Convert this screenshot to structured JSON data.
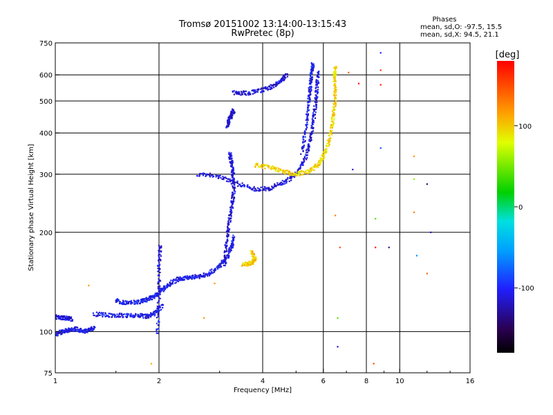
{
  "chart_data": {
    "type": "scatter",
    "title": "Tromsø 20151002 13:14:00-13:15:43",
    "subtitle": "RwPretec (8p)",
    "xlabel": "Frequency [MHz]",
    "ylabel": "Stationary phase Virtual Height [km]",
    "x_scale": "log",
    "y_scale": "log",
    "xlim": [
      1,
      16
    ],
    "ylim": [
      75,
      750
    ],
    "x_ticks": [
      1,
      2,
      4,
      6,
      8,
      10,
      16
    ],
    "x_tick_labels": [
      "1",
      "2",
      "4",
      "6",
      "8",
      "10",
      "16"
    ],
    "y_ticks": [
      75,
      100,
      200,
      300,
      400,
      500,
      600,
      750
    ],
    "y_tick_labels": [
      "75",
      "100",
      "200",
      "300",
      "400",
      "500",
      "600",
      "750"
    ],
    "grid": true,
    "info": {
      "heading": "Phases",
      "line1": "mean, sd,O: -97.5, 15.5",
      "line2": "mean, sd,X:  94.5, 21.1"
    },
    "colorbar": {
      "label": "[deg]",
      "range": [
        -180,
        180
      ],
      "ticks": [
        100,
        0,
        -100
      ],
      "tick_labels": [
        "100",
        "0",
        "-100"
      ]
    },
    "traces": [
      {
        "name": "O-mode low E/F1 lower",
        "phase": -110,
        "points": [
          [
            1.0,
            111
          ],
          [
            1.04,
            110
          ],
          [
            1.08,
            110
          ],
          [
            1.12,
            109
          ]
        ]
      },
      {
        "name": "O-mode low band",
        "phase": -105,
        "points": [
          [
            1.0,
            98
          ],
          [
            1.05,
            100
          ],
          [
            1.1,
            101
          ],
          [
            1.15,
            102
          ],
          [
            1.2,
            100
          ],
          [
            1.25,
            101
          ],
          [
            1.3,
            103
          ]
        ]
      },
      {
        "name": "F1 lower trace",
        "phase": -105,
        "points": [
          [
            1.3,
            113
          ],
          [
            1.45,
            112
          ],
          [
            1.6,
            112
          ],
          [
            1.75,
            112
          ],
          [
            1.85,
            111
          ],
          [
            1.95,
            114
          ],
          [
            2.05,
            120
          ]
        ]
      },
      {
        "name": "F1 upper trace",
        "phase": -105,
        "points": [
          [
            1.5,
            124
          ],
          [
            1.6,
            122
          ],
          [
            1.75,
            123
          ],
          [
            1.85,
            125
          ],
          [
            1.95,
            128
          ],
          [
            2.05,
            134
          ],
          [
            2.15,
            140
          ],
          [
            2.3,
            145
          ],
          [
            2.45,
            146
          ],
          [
            2.6,
            147
          ],
          [
            2.8,
            150
          ],
          [
            3.0,
            158
          ],
          [
            3.15,
            168
          ],
          [
            3.25,
            180
          ],
          [
            3.3,
            195
          ]
        ]
      },
      {
        "name": "F cusp near 2 MHz",
        "phase": -110,
        "points": [
          [
            1.98,
            100
          ],
          [
            2.0,
            130
          ],
          [
            2.0,
            160
          ],
          [
            2.02,
            185
          ]
        ]
      },
      {
        "name": "F1 cusp near 3.2 MHz",
        "phase": -115,
        "points": [
          [
            3.1,
            160
          ],
          [
            3.15,
            190
          ],
          [
            3.2,
            215
          ],
          [
            3.25,
            240
          ],
          [
            3.3,
            270
          ],
          [
            3.28,
            300
          ],
          [
            3.25,
            325
          ],
          [
            3.2,
            350
          ]
        ]
      },
      {
        "name": "F2 O-mode",
        "phase": -110,
        "points": [
          [
            2.6,
            300
          ],
          [
            3.0,
            295
          ],
          [
            3.4,
            280
          ],
          [
            3.8,
            270
          ],
          [
            4.2,
            272
          ],
          [
            4.6,
            283
          ],
          [
            5.0,
            300
          ],
          [
            5.3,
            330
          ],
          [
            5.5,
            380
          ],
          [
            5.6,
            430
          ],
          [
            5.7,
            490
          ],
          [
            5.75,
            550
          ],
          [
            5.8,
            620
          ]
        ]
      },
      {
        "name": "F2 O-mode second hop",
        "phase": -110,
        "points": [
          [
            3.3,
            530
          ],
          [
            3.6,
            528
          ],
          [
            4.0,
            540
          ],
          [
            4.3,
            555
          ],
          [
            4.55,
            580
          ],
          [
            4.7,
            600
          ]
        ]
      },
      {
        "name": "F2 O-mode spread",
        "phase": -105,
        "points": [
          [
            5.2,
            350
          ],
          [
            5.35,
            420
          ],
          [
            5.45,
            500
          ],
          [
            5.5,
            560
          ],
          [
            5.55,
            610
          ],
          [
            5.6,
            650
          ]
        ]
      },
      {
        "name": "F2 X-mode",
        "phase": 95,
        "points": [
          [
            3.8,
            320
          ],
          [
            4.2,
            315
          ],
          [
            4.6,
            305
          ],
          [
            5.0,
            300
          ],
          [
            5.4,
            305
          ],
          [
            5.8,
            320
          ],
          [
            6.0,
            340
          ],
          [
            6.2,
            370
          ],
          [
            6.35,
            420
          ],
          [
            6.45,
            470
          ],
          [
            6.5,
            530
          ],
          [
            6.45,
            590
          ],
          [
            6.5,
            640
          ]
        ]
      },
      {
        "name": "Sporadic X-mode patch",
        "phase": 100,
        "points": [
          [
            3.5,
            160
          ],
          [
            3.65,
            160
          ],
          [
            3.8,
            165
          ],
          [
            3.7,
            175
          ]
        ]
      },
      {
        "name": "Isolated 2-3 MHz patch",
        "phase": -115,
        "points": [
          [
            3.15,
            420
          ],
          [
            3.2,
            440
          ],
          [
            3.25,
            455
          ],
          [
            3.3,
            470
          ]
        ]
      },
      {
        "name": "Scatter points",
        "phase": 0,
        "points": [
          [
            1.25,
            138
          ],
          [
            6.6,
            90
          ],
          [
            6.5,
            225
          ],
          [
            7.3,
            310
          ],
          [
            8.5,
            220
          ],
          [
            8.5,
            180
          ],
          [
            8.8,
            700
          ],
          [
            8.8,
            620
          ],
          [
            8.8,
            560
          ],
          [
            8.8,
            360
          ],
          [
            9.3,
            180
          ],
          [
            11.0,
            340
          ],
          [
            11.0,
            290
          ],
          [
            11.0,
            230
          ],
          [
            11.2,
            170
          ],
          [
            12.0,
            150
          ],
          [
            12.0,
            280
          ],
          [
            12.3,
            200
          ],
          [
            6.6,
            110
          ],
          [
            6.7,
            180
          ],
          [
            7.1,
            610
          ],
          [
            7.6,
            565
          ],
          [
            8.4,
            80
          ],
          [
            2.9,
            140
          ],
          [
            2.7,
            110
          ],
          [
            1.9,
            80
          ]
        ]
      }
    ],
    "scatter_phases": [
      120,
      -120,
      130,
      -110,
      40,
      170,
      -100,
      160,
      170,
      -80,
      -130,
      120,
      60,
      130,
      -60,
      140,
      -140,
      -120,
      40,
      150,
      140,
      170,
      150,
      120,
      120,
      110
    ]
  }
}
